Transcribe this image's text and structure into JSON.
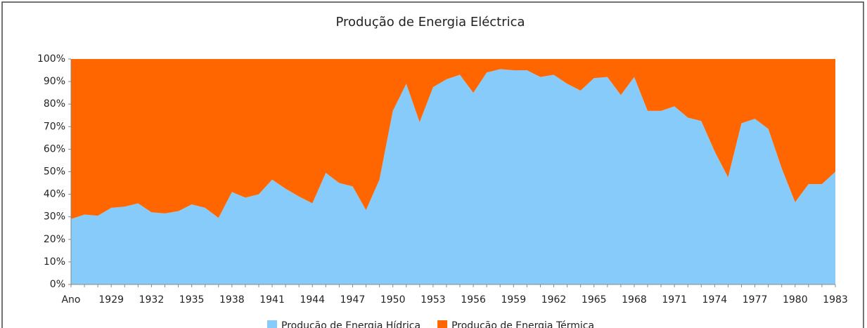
{
  "chart_data": {
    "type": "stacked_area_percent",
    "title": "Produção de Energia Eléctrica",
    "categories": [
      "Ano",
      null,
      null,
      "1929",
      null,
      null,
      "1932",
      null,
      null,
      "1935",
      null,
      null,
      "1938",
      null,
      null,
      "1941",
      null,
      null,
      "1944",
      null,
      null,
      "1947",
      null,
      null,
      "1950",
      null,
      null,
      "1953",
      null,
      null,
      "1956",
      null,
      null,
      "1959",
      null,
      null,
      "1962",
      null,
      null,
      "1965",
      null,
      null,
      "1968",
      null,
      null,
      "1971",
      null,
      null,
      "1974",
      null,
      null,
      "1977",
      null,
      null,
      "1980",
      null,
      null,
      "1983"
    ],
    "series": [
      {
        "name": "Produção de Energia Hídrica",
        "color": "#87cbfb",
        "values": [
          29,
          31,
          30.5,
          34,
          34.5,
          36,
          32,
          31.5,
          32.5,
          35.5,
          34,
          29.5,
          41,
          38.5,
          40,
          46.5,
          42.5,
          39,
          36,
          49.5,
          45,
          43.5,
          33,
          46.5,
          77,
          89,
          72,
          87.5,
          91,
          93,
          85,
          94,
          95.5,
          95,
          95,
          92,
          93,
          89,
          86,
          91.5,
          92,
          84,
          92,
          77,
          77,
          79,
          74,
          72.5,
          59,
          47.5,
          71.5,
          73.5,
          69,
          51.5,
          36.5,
          44.5,
          44.5,
          50
        ]
      },
      {
        "name": "Produção de Energia Térmica",
        "color": "#ff6600",
        "values": [
          71,
          69,
          69.5,
          66,
          65.5,
          64,
          68,
          68.5,
          67.5,
          64.5,
          66,
          70.5,
          59,
          61.5,
          60,
          53.5,
          57.5,
          61,
          64,
          50.5,
          55,
          56.5,
          67,
          53.5,
          23,
          11,
          28,
          12.5,
          9,
          7,
          15,
          6,
          4.5,
          5,
          5,
          8,
          7,
          11,
          14,
          8.5,
          8,
          16,
          8,
          23,
          23,
          21,
          26,
          27.5,
          41,
          52.5,
          28.5,
          26.5,
          31,
          48.5,
          63.5,
          55.5,
          55.5,
          50
        ]
      }
    ],
    "ylim": [
      0,
      100
    ],
    "yticks": [
      {
        "value": 0,
        "label": "0%"
      },
      {
        "value": 10,
        "label": "10%"
      },
      {
        "value": 20,
        "label": "20%"
      },
      {
        "value": 30,
        "label": "30%"
      },
      {
        "value": 40,
        "label": "40%"
      },
      {
        "value": 50,
        "label": "50%"
      },
      {
        "value": 60,
        "label": "60%"
      },
      {
        "value": 70,
        "label": "70%"
      },
      {
        "value": 80,
        "label": "80%"
      },
      {
        "value": 90,
        "label": "90%"
      },
      {
        "value": 100,
        "label": "100%"
      }
    ]
  }
}
